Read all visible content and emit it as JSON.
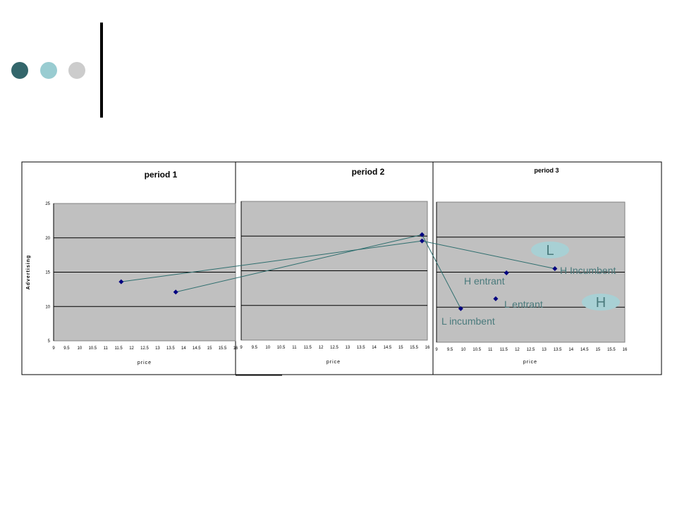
{
  "decor": {
    "dot_colors": [
      "#33666b",
      "#99ccd1",
      "#cccccc"
    ],
    "bar_color": "#000000"
  },
  "colors": {
    "plot_bg": "#c0c0c0",
    "line": "#2e6e6e",
    "marker": "#000080",
    "ann": "#4a7a7c",
    "oval": "#a8d0d4"
  },
  "annotations": {
    "h_incumbent": "H Incumbent",
    "h_entrant": "H entrant",
    "l_entrant": "L entrant",
    "l_incumbent": "L incumbent",
    "oval_l": "L",
    "oval_h": "H"
  },
  "chart_data": [
    {
      "type": "scatter",
      "title": "period 1",
      "xlabel": "price",
      "ylabel": "Advertising",
      "xlim": [
        9,
        16
      ],
      "ylim": [
        5,
        25
      ],
      "x_ticks": [
        "9",
        "9.5",
        "10",
        "10.5",
        "11",
        "11.5",
        "12",
        "12.5",
        "13",
        "13.5",
        "14",
        "14.5",
        "15",
        "15.5",
        "16"
      ],
      "y_ticks": [
        "5",
        "10",
        "15",
        "20",
        "25"
      ],
      "grid": true,
      "series": [
        {
          "values": [
            {
              "x": 11.6,
              "y": 13.6
            }
          ]
        },
        {
          "values": [
            {
              "x": 13.7,
              "y": 12.1
            }
          ]
        }
      ]
    },
    {
      "type": "scatter",
      "title": "period 2",
      "xlabel": "price",
      "xlim": [
        9,
        16
      ],
      "ylim": [
        5,
        25
      ],
      "x_ticks": [
        "9",
        "9.5",
        "10",
        "10.5",
        "11",
        "11.5",
        "12",
        "12.5",
        "13",
        "13.5",
        "14",
        "14.5",
        "15",
        "15.5",
        "16"
      ],
      "grid": true,
      "series": [
        {
          "values": [
            {
              "x": 15.8,
              "y": 20.2
            }
          ]
        },
        {
          "values": [
            {
              "x": 15.8,
              "y": 19.3
            }
          ]
        }
      ]
    },
    {
      "type": "scatter",
      "title": "period 3",
      "xlabel": "price",
      "xlim": [
        9,
        16
      ],
      "ylim": [
        5,
        25
      ],
      "x_ticks": [
        "9",
        "9.5",
        "10",
        "10.5",
        "11",
        "11.5",
        "12",
        "12.5",
        "13",
        "13.5",
        "14",
        "14.5",
        "15",
        "15.5",
        "16"
      ],
      "grid": true,
      "series": [
        {
          "values": [
            {
              "x": 13.4,
              "y": 15.5
            }
          ]
        },
        {
          "values": [
            {
              "x": 11.6,
              "y": 14.9
            }
          ]
        },
        {
          "values": [
            {
              "x": 11.2,
              "y": 11.2
            }
          ]
        },
        {
          "values": [
            {
              "x": 9.9,
              "y": 9.8
            }
          ]
        }
      ]
    }
  ],
  "connections": [
    {
      "from": [
        0,
        0,
        0
      ],
      "to": [
        1,
        1,
        0
      ]
    },
    {
      "from": [
        0,
        1,
        0
      ],
      "to": [
        1,
        0,
        0
      ]
    },
    {
      "from": [
        1,
        1,
        0
      ],
      "to": [
        2,
        0,
        0
      ]
    },
    {
      "from": [
        1,
        0,
        0
      ],
      "to": [
        2,
        3,
        0
      ]
    }
  ]
}
